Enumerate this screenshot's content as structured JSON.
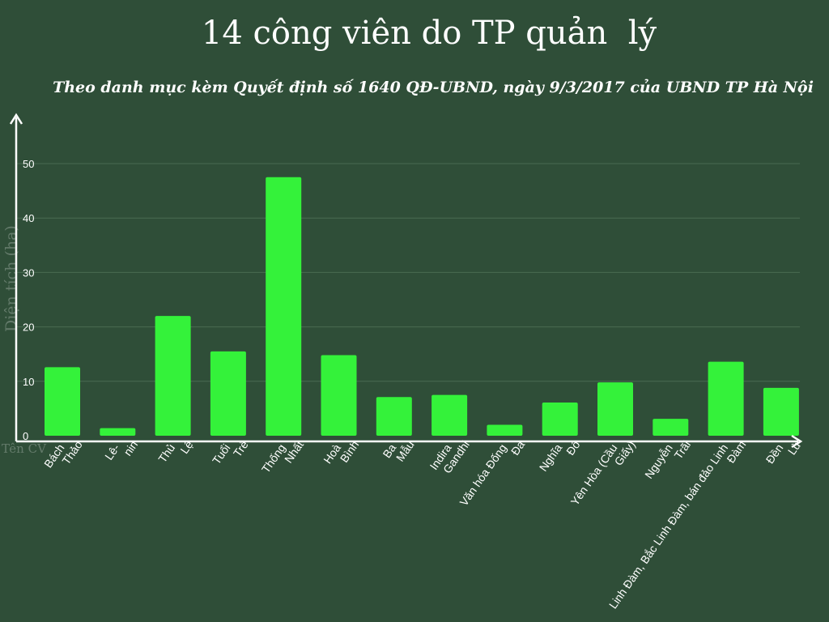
{
  "chart_data": {
    "type": "bar",
    "title": "14 công viên do TP quản  lý",
    "subtitle": "Theo danh mục kèm Quyết định số 1640 QĐ-UBND, ngày 9/3/2017 của UBND TP Hà Nội",
    "ylabel": "Diện tích (ha)",
    "xlabel": "Tên CV",
    "ylim": [
      0,
      50
    ],
    "yticks": [
      "0",
      "10",
      "20",
      "30",
      "40",
      "50"
    ],
    "grid": true,
    "categories": [
      [
        "Bách",
        "Thảo"
      ],
      [
        "Lê-",
        "nin"
      ],
      [
        "Thủ",
        "Lệ"
      ],
      [
        "Tuổi",
        "Trẻ"
      ],
      [
        "Thống",
        "Nhất"
      ],
      [
        "Hoà",
        "Bình"
      ],
      [
        "Ba",
        "Mẫu"
      ],
      [
        "Indira",
        "Gandhi"
      ],
      [
        "Văn hóa Đống",
        "Đa"
      ],
      [
        "Nghĩa",
        "Đô"
      ],
      [
        "Yên Hòa (Cầu",
        "Giấy)"
      ],
      [
        "Nguyễn",
        "Trãi"
      ],
      [
        "Linh Đàm, Bắc Linh Đàm, bán đảo Linh",
        "Đàm"
      ],
      [
        "Đền",
        "Lừ"
      ]
    ],
    "values": [
      12.6,
      1.4,
      22.0,
      15.5,
      47.5,
      14.8,
      7.1,
      7.5,
      2.0,
      6.1,
      9.8,
      3.1,
      13.6,
      8.8
    ],
    "bar_color": "#34f23a",
    "grid_color": "#4a6b52",
    "background": "#2f4e38"
  }
}
